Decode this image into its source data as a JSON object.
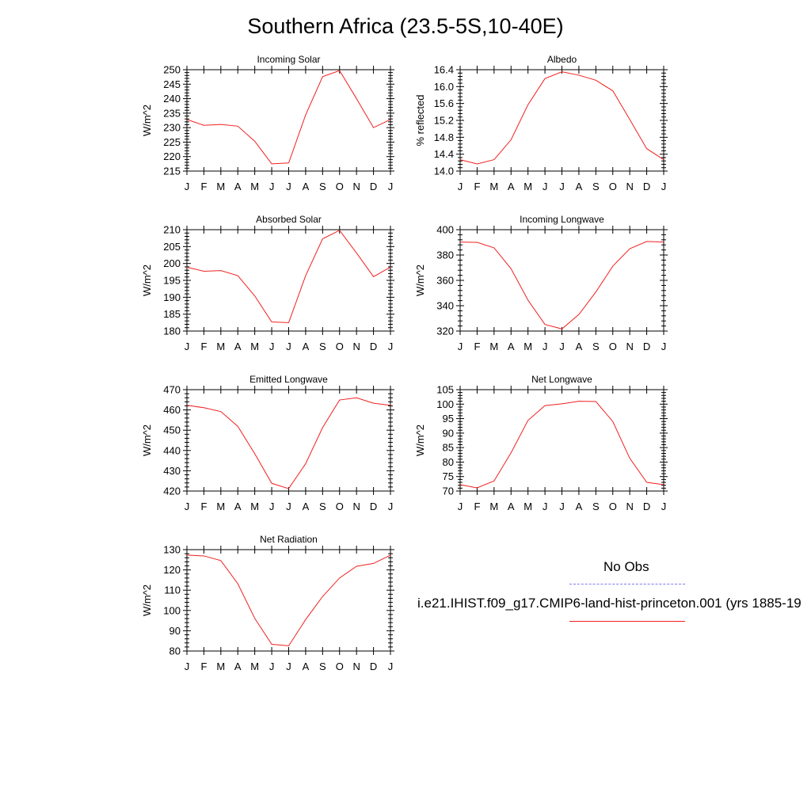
{
  "page": {
    "title": "Southern Africa (23.5-5S,10-40E)"
  },
  "legend": {
    "obs_label": "No Obs",
    "obs_color": "#7b7bf0",
    "model_label": "i.e21.IHIST.f09_g17.CMIP6-land-hist-princeton.001 (yrs 1885-19",
    "model_color": "#f02020"
  },
  "chart_data": [
    {
      "type": "line",
      "title": "Incoming Solar",
      "ylabel": "W/m^2",
      "categories": [
        "J",
        "F",
        "M",
        "A",
        "M",
        "J",
        "J",
        "A",
        "S",
        "O",
        "N",
        "D",
        "J"
      ],
      "ylim": [
        215,
        250
      ],
      "yticks": [
        "215",
        "220",
        "225",
        "230",
        "235",
        "240",
        "245",
        "250"
      ],
      "series": [
        {
          "values": [
            232.8,
            230.8,
            231.1,
            230.5,
            225.3,
            217.5,
            217.8,
            234.4,
            247.6,
            249.7,
            240.0,
            230.0,
            232.8
          ]
        }
      ]
    },
    {
      "type": "line",
      "title": "Albedo",
      "ylabel": "% reflected",
      "categories": [
        "J",
        "F",
        "M",
        "A",
        "M",
        "J",
        "J",
        "A",
        "S",
        "O",
        "N",
        "D",
        "J"
      ],
      "ylim": [
        14.0,
        16.4
      ],
      "yticks": [
        "14.0",
        "14.4",
        "14.8",
        "15.2",
        "15.6",
        "16.0",
        "16.4"
      ],
      "series": [
        {
          "values": [
            14.27,
            14.17,
            14.27,
            14.74,
            15.57,
            16.19,
            16.35,
            16.27,
            16.15,
            15.9,
            15.22,
            14.53,
            14.27
          ]
        }
      ]
    },
    {
      "type": "line",
      "title": "Absorbed Solar",
      "ylabel": "W/m^2",
      "categories": [
        "J",
        "F",
        "M",
        "A",
        "M",
        "J",
        "J",
        "A",
        "S",
        "O",
        "N",
        "D",
        "J"
      ],
      "ylim": [
        180,
        210
      ],
      "yticks": [
        "180",
        "185",
        "190",
        "195",
        "200",
        "205",
        "210"
      ],
      "series": [
        {
          "values": [
            198.9,
            197.7,
            197.9,
            196.4,
            190.4,
            182.7,
            182.5,
            196.4,
            207.3,
            209.8,
            203.1,
            196.1,
            198.9
          ]
        }
      ]
    },
    {
      "type": "line",
      "title": "Incoming Longwave",
      "ylabel": "W/m^2",
      "categories": [
        "J",
        "F",
        "M",
        "A",
        "M",
        "J",
        "J",
        "A",
        "S",
        "O",
        "N",
        "D",
        "J"
      ],
      "ylim": [
        320,
        400
      ],
      "yticks": [
        "320",
        "340",
        "360",
        "380",
        "400"
      ],
      "series": [
        {
          "values": [
            390.2,
            390.0,
            385.7,
            369.2,
            344.4,
            325.2,
            321.7,
            333.1,
            350.8,
            371.2,
            385.0,
            390.7,
            390.2
          ]
        }
      ]
    },
    {
      "type": "line",
      "title": "Emitted Longwave",
      "ylabel": "W/m^2",
      "categories": [
        "J",
        "F",
        "M",
        "A",
        "M",
        "J",
        "J",
        "A",
        "S",
        "O",
        "N",
        "D",
        "J"
      ],
      "ylim": [
        420,
        470
      ],
      "yticks": [
        "420",
        "430",
        "440",
        "450",
        "460",
        "470"
      ],
      "series": [
        {
          "values": [
            462.3,
            461.1,
            459.2,
            451.9,
            438.4,
            423.8,
            421.2,
            433.5,
            451.3,
            464.9,
            466.0,
            463.3,
            462.3
          ]
        }
      ]
    },
    {
      "type": "line",
      "title": "Net Longwave",
      "ylabel": "W/m^2",
      "categories": [
        "J",
        "F",
        "M",
        "A",
        "M",
        "J",
        "J",
        "A",
        "S",
        "O",
        "N",
        "D",
        "J"
      ],
      "ylim": [
        70,
        105
      ],
      "yticks": [
        "70",
        "75",
        "80",
        "85",
        "90",
        "95",
        "100",
        "105"
      ],
      "series": [
        {
          "values": [
            72.2,
            71.1,
            73.5,
            83.2,
            94.4,
            99.5,
            100.1,
            101.0,
            100.9,
            94.0,
            81.3,
            73.0,
            72.2
          ]
        }
      ]
    },
    {
      "type": "line",
      "title": "Net Radiation",
      "ylabel": "W/m^2",
      "categories": [
        "J",
        "F",
        "M",
        "A",
        "M",
        "J",
        "J",
        "A",
        "S",
        "O",
        "N",
        "D",
        "J"
      ],
      "ylim": [
        80,
        130
      ],
      "yticks": [
        "80",
        "90",
        "100",
        "110",
        "120",
        "130"
      ],
      "series": [
        {
          "values": [
            127.3,
            126.9,
            124.6,
            113.2,
            96.1,
            83.3,
            82.6,
            95.5,
            106.9,
            116.0,
            121.8,
            123.2,
            127.3
          ]
        }
      ]
    }
  ]
}
